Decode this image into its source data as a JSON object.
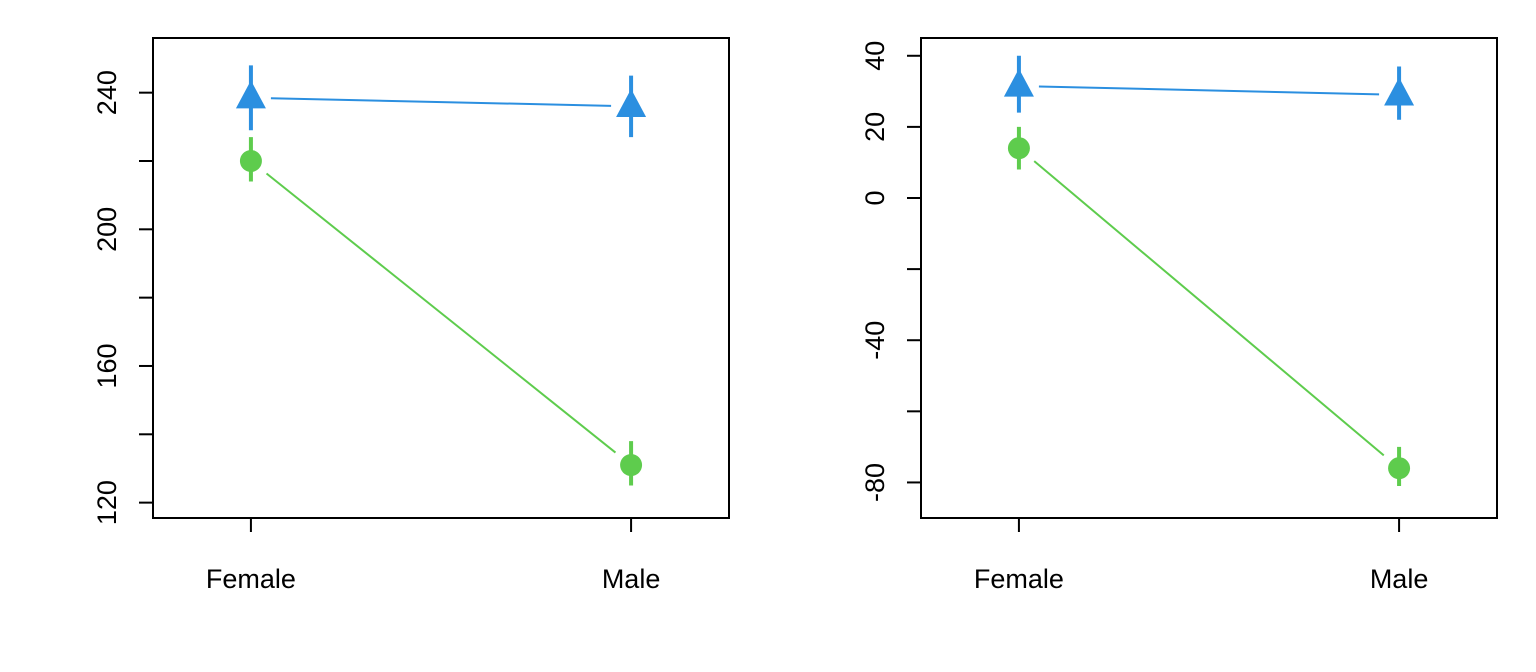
{
  "chart_data": [
    {
      "type": "line",
      "title": "",
      "xlabel": "",
      "ylabel": "",
      "categories": [
        "Female",
        "Male"
      ],
      "ylim": [
        115.5,
        256
      ],
      "yticks": [
        120,
        160,
        200,
        240
      ],
      "yticks_minor": [
        140,
        180,
        220
      ],
      "grid": false,
      "legend": "none",
      "series": [
        {
          "marker": "triangle",
          "color": "#2b8fe0",
          "values": [
            238.5,
            236
          ],
          "error_low": [
            229,
            227
          ],
          "error_high": [
            248,
            245
          ]
        },
        {
          "marker": "circle",
          "color": "#5ecc4d",
          "values": [
            220,
            131
          ],
          "error_low": [
            214,
            125
          ],
          "error_high": [
            227,
            138
          ]
        }
      ]
    },
    {
      "type": "line",
      "title": "",
      "xlabel": "",
      "ylabel": "",
      "categories": [
        "Female",
        "Male"
      ],
      "ylim": [
        -90,
        45
      ],
      "yticks": [
        -80,
        -40,
        0,
        20,
        40
      ],
      "yticks_minor": [
        -60,
        -20
      ],
      "grid": false,
      "legend": "none",
      "series": [
        {
          "marker": "triangle",
          "color": "#2b8fe0",
          "values": [
            31.5,
            29
          ],
          "error_low": [
            24,
            22
          ],
          "error_high": [
            40,
            37
          ]
        },
        {
          "marker": "circle",
          "color": "#5ecc4d",
          "values": [
            14,
            -76
          ],
          "error_low": [
            8,
            -81
          ],
          "error_high": [
            20,
            -70
          ]
        }
      ]
    }
  ]
}
